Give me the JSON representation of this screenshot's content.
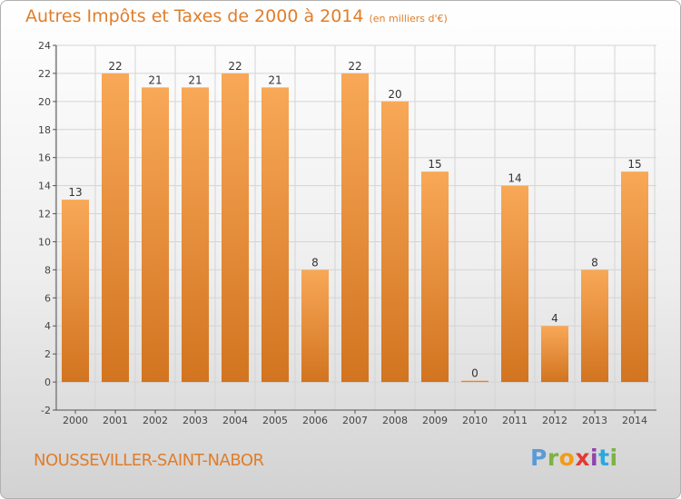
{
  "header": {
    "title": "Autres Impôts et Taxes de 2000 à 2014",
    "unit": "(en milliers d'€)"
  },
  "footer": {
    "city": "NOUSSEVILLER-SAINT-NABOR",
    "logo_letters": [
      "P",
      "r",
      "o",
      "x",
      "i",
      "t",
      "i"
    ],
    "logo_colors": [
      "#5b9bd5",
      "#7cb342",
      "#f39c12",
      "#e53935",
      "#8e44ad",
      "#29a8e0",
      "#7cb342"
    ]
  },
  "colors": {
    "title": "#e07d2a",
    "bar_top": "#f8a857",
    "bar_bottom": "#d27420",
    "axis": "#555555",
    "grid": "#d4d4d4"
  },
  "chart_data": {
    "type": "bar",
    "categories": [
      "2000",
      "2001",
      "2002",
      "2003",
      "2004",
      "2005",
      "2006",
      "2007",
      "2008",
      "2009",
      "2010",
      "2011",
      "2012",
      "2013",
      "2014"
    ],
    "values": [
      13,
      22,
      21,
      21,
      22,
      21,
      8,
      22,
      20,
      15,
      0,
      14,
      4,
      8,
      15
    ],
    "data_labels": [
      "13",
      "22",
      "21",
      "21",
      "22",
      "21",
      "8",
      "22",
      "20",
      "15",
      "0",
      "14",
      "4",
      "8",
      "15"
    ],
    "y_ticks": [
      -2,
      0,
      2,
      4,
      6,
      8,
      10,
      12,
      14,
      16,
      18,
      20,
      22,
      24
    ],
    "ylim": [
      -2,
      24
    ],
    "grid": true
  }
}
